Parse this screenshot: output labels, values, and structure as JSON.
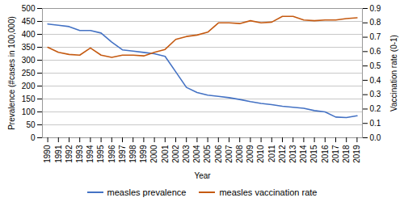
{
  "chart_data": {
    "type": "line",
    "xlabel": "Year",
    "ylabel": "Prevalence (#cases in 100,000)",
    "y2label": "Vaccination rate (0-1)",
    "x": [
      1990,
      1991,
      1992,
      1993,
      1994,
      1995,
      1996,
      1997,
      1998,
      1999,
      2000,
      2001,
      2002,
      2003,
      2004,
      2005,
      2006,
      2007,
      2008,
      2009,
      2010,
      2011,
      2012,
      2013,
      2014,
      2015,
      2016,
      2017,
      2018,
      2019
    ],
    "series": [
      {
        "name": "measles prevalence",
        "color": "#4472C4",
        "values": [
          440,
          435,
          430,
          415,
          415,
          405,
          370,
          340,
          335,
          330,
          325,
          315,
          255,
          195,
          175,
          165,
          160,
          155,
          148,
          140,
          133,
          128,
          122,
          118,
          114,
          105,
          100,
          80,
          78,
          85
        ]
      },
      {
        "name": "measles vaccination rate",
        "color": "#C55A11",
        "axis": "y2",
        "values": [
          0.63,
          0.595,
          0.58,
          0.575,
          0.625,
          0.575,
          0.56,
          0.575,
          0.575,
          0.57,
          0.595,
          0.615,
          0.685,
          0.705,
          0.715,
          0.735,
          0.8,
          0.8,
          0.795,
          0.815,
          0.8,
          0.805,
          0.845,
          0.845,
          0.82,
          0.815,
          0.82,
          0.82,
          0.83,
          0.835
        ]
      }
    ],
    "xlim": [
      1989.5,
      2019.5
    ],
    "xticks": [
      1990,
      1991,
      1992,
      1993,
      1994,
      1995,
      1996,
      1997,
      1998,
      1999,
      2000,
      2001,
      2002,
      2003,
      2004,
      2005,
      2006,
      2007,
      2008,
      2009,
      2010,
      2011,
      2012,
      2013,
      2014,
      2015,
      2016,
      2017,
      2018,
      2019
    ],
    "ylim": [
      0,
      500
    ],
    "yticks": [
      0,
      50,
      100,
      150,
      200,
      250,
      300,
      350,
      400,
      450,
      500
    ],
    "y2lim": [
      0,
      0.9
    ],
    "y2ticks": [
      {
        "value": 0,
        "label": "0.0"
      },
      0.1,
      0.2,
      0.3,
      0.4,
      0.5,
      0.6,
      0.7,
      0.8,
      0.9
    ],
    "grid": true,
    "legend": "bottom"
  }
}
